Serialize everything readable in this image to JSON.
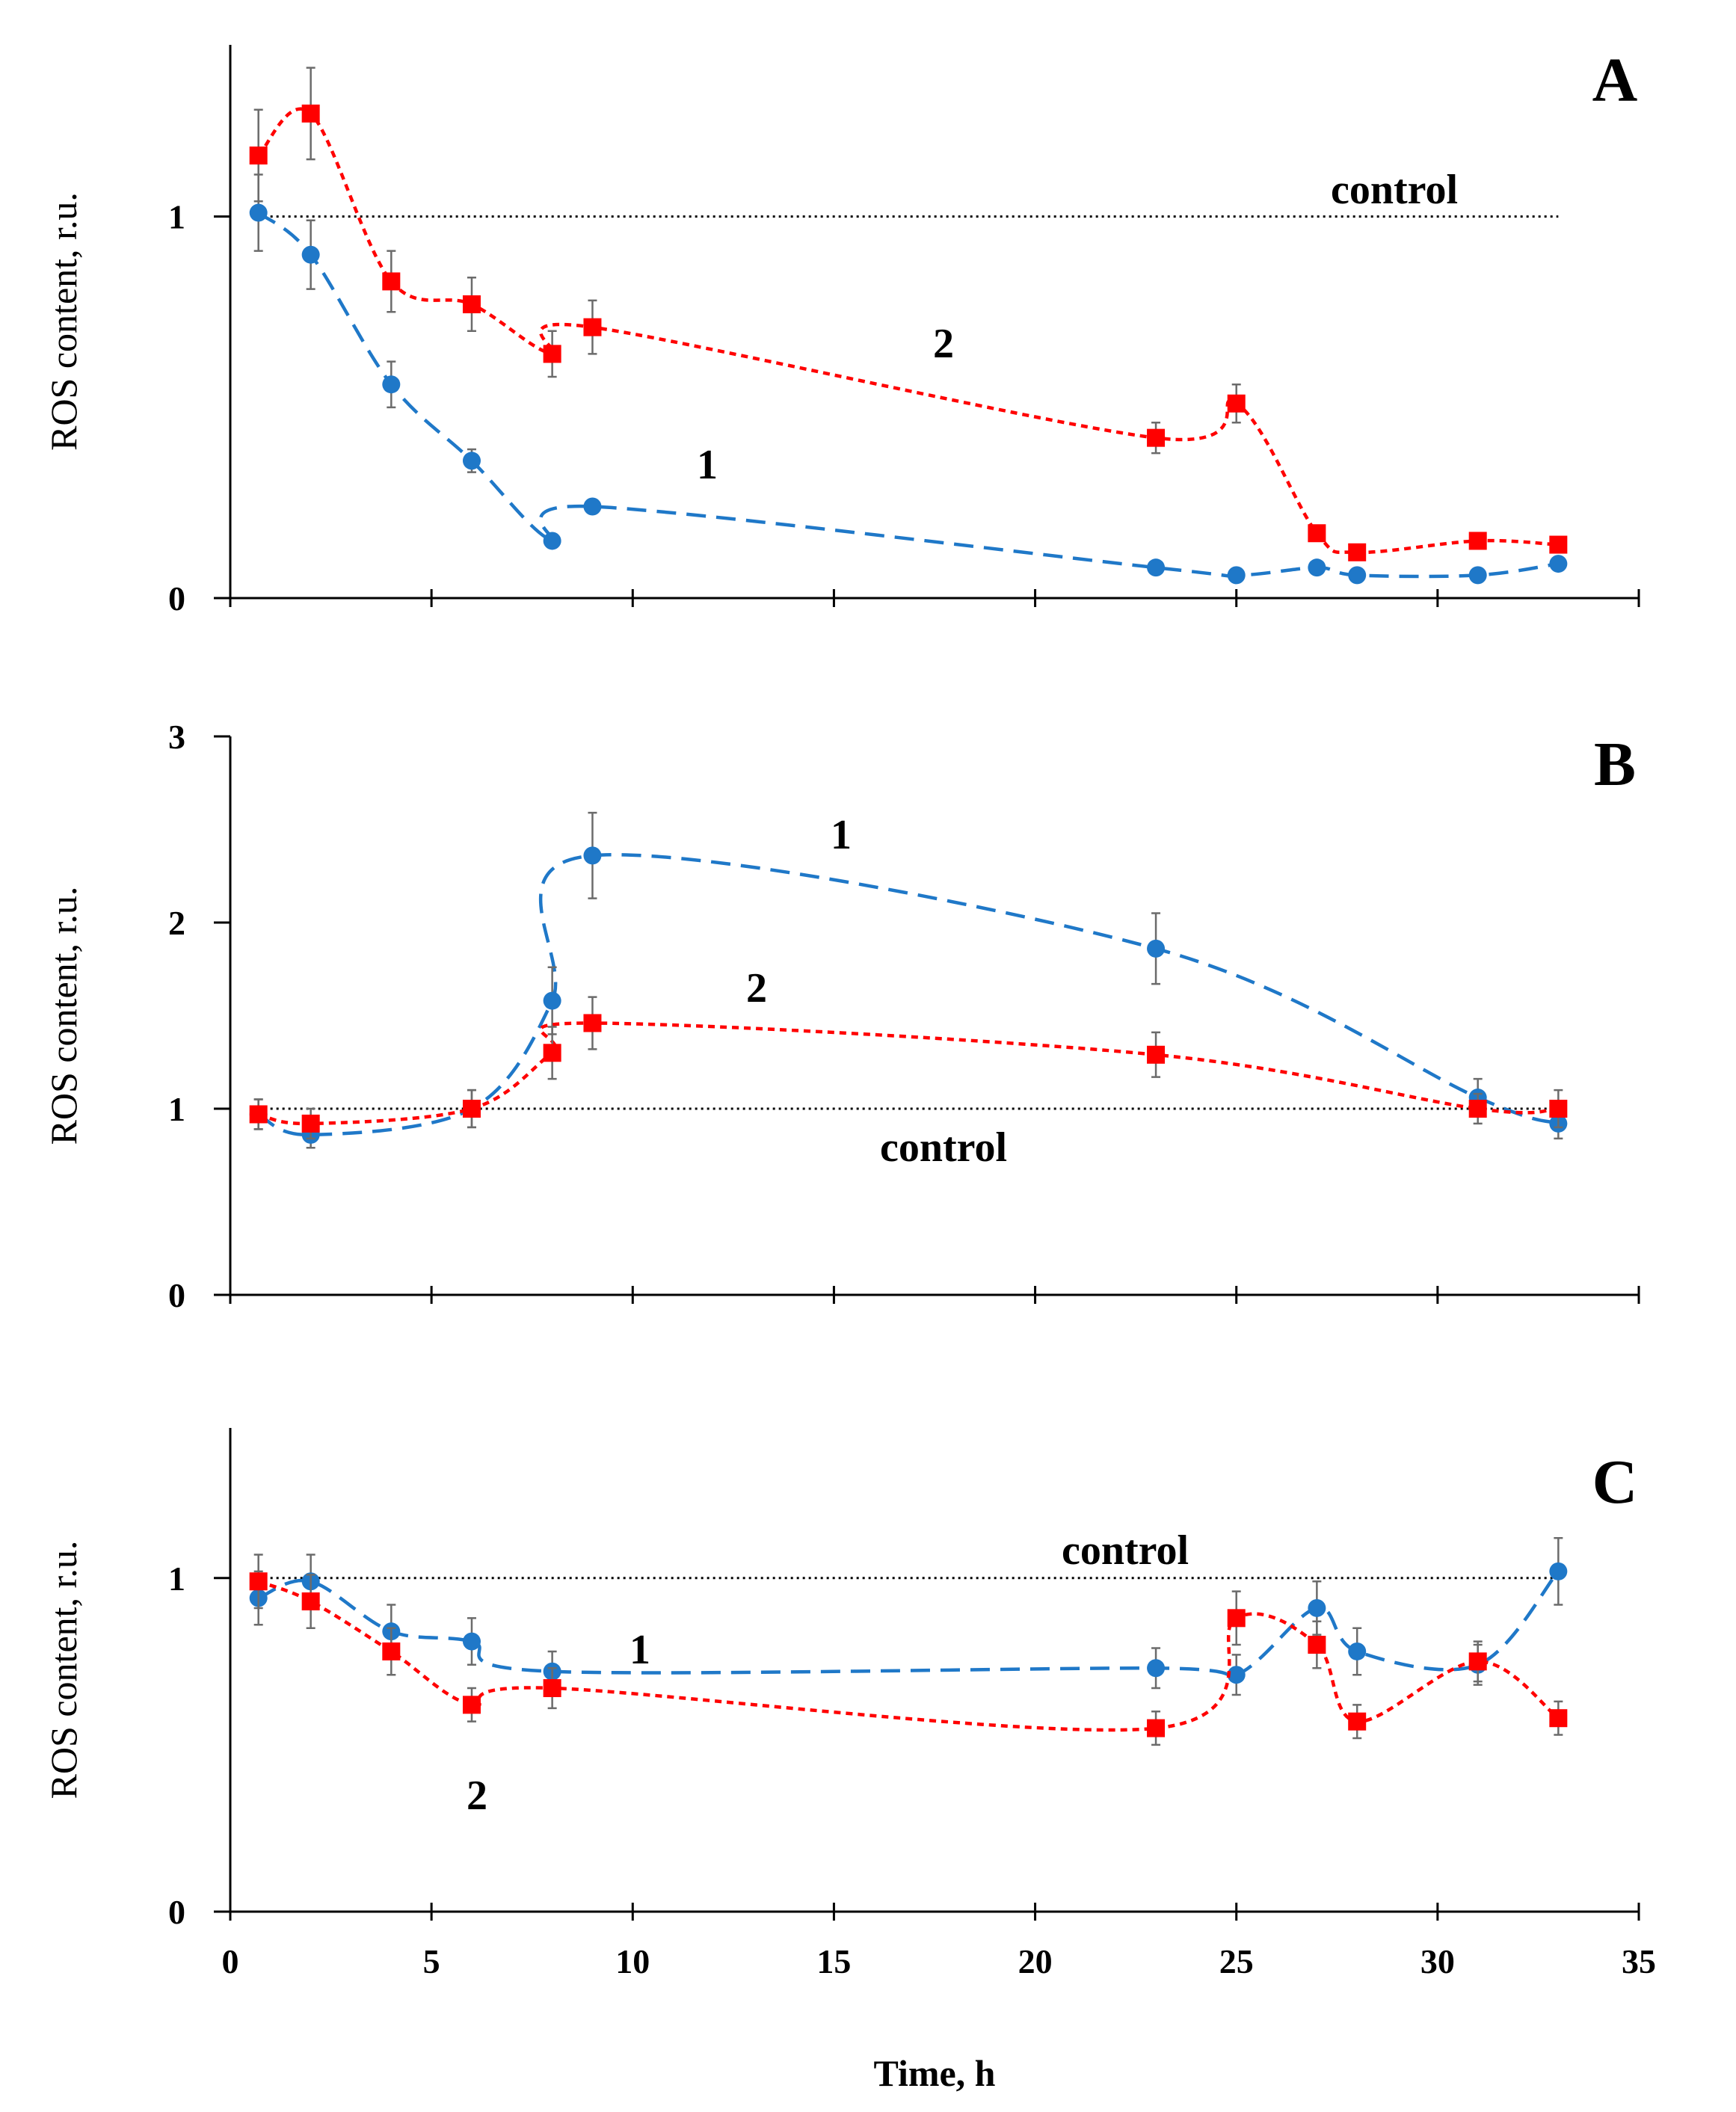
{
  "figure": {
    "xlabel": "Time, h",
    "x_tick_labels": [
      "0",
      "5",
      "10",
      "15",
      "20",
      "25",
      "30",
      "35"
    ],
    "colors": {
      "series1": "#1f78c8",
      "series2": "#ff0000",
      "control": "#000000"
    }
  },
  "chart_data": [
    {
      "type": "line",
      "panel": "A",
      "title": "A",
      "xlabel": "Time, h",
      "ylabel": "ROS content, r.u.",
      "xlim": [
        0,
        35
      ],
      "ylim": [
        0,
        1.45
      ],
      "y_ticks": [
        0,
        1
      ],
      "y_tick_labels": [
        "0",
        "1"
      ],
      "control": {
        "label": "control",
        "value": 1,
        "x_range": [
          0.7,
          33
        ]
      },
      "series": [
        {
          "name": "1",
          "label": "1",
          "marker": "circle",
          "color": "#1f78c8",
          "x": [
            0.7,
            2,
            4,
            6,
            8,
            9,
            23,
            25,
            27,
            28,
            31,
            33
          ],
          "y": [
            1.01,
            0.9,
            0.56,
            0.36,
            0.15,
            0.24,
            0.08,
            0.06,
            0.08,
            0.06,
            0.06,
            0.09
          ],
          "err": [
            0.1,
            0.09,
            0.06,
            0.03,
            0,
            0,
            0,
            0,
            0,
            0,
            0,
            0
          ]
        },
        {
          "name": "2",
          "label": "2",
          "marker": "square",
          "color": "#ff0000",
          "x": [
            0.7,
            2,
            4,
            6,
            8,
            9,
            23,
            25,
            27,
            28,
            31,
            33
          ],
          "y": [
            1.16,
            1.27,
            0.83,
            0.77,
            0.64,
            0.71,
            0.42,
            0.51,
            0.17,
            0.12,
            0.15,
            0.14
          ],
          "err": [
            0.12,
            0.12,
            0.08,
            0.07,
            0.06,
            0.07,
            0.04,
            0.05,
            0,
            0,
            0,
            0
          ]
        }
      ]
    },
    {
      "type": "line",
      "panel": "B",
      "title": "B",
      "xlabel": "Time, h",
      "ylabel": "ROS content, r.u.",
      "xlim": [
        0,
        35
      ],
      "ylim": [
        0,
        3
      ],
      "y_ticks": [
        0,
        1,
        2,
        3
      ],
      "y_tick_labels": [
        "0",
        "1",
        "2",
        "3"
      ],
      "control": {
        "label": "control",
        "value": 1,
        "x_range": [
          0.7,
          33
        ]
      },
      "series": [
        {
          "name": "1",
          "label": "1",
          "marker": "circle",
          "color": "#1f78c8",
          "x": [
            0.7,
            2,
            6,
            8,
            9,
            23,
            31,
            33
          ],
          "y": [
            0.97,
            0.86,
            1.0,
            1.58,
            2.36,
            1.86,
            1.06,
            0.92
          ],
          "err": [
            0.08,
            0.07,
            0.1,
            0.18,
            0.23,
            0.19,
            0.1,
            0.08
          ]
        },
        {
          "name": "2",
          "label": "2",
          "marker": "square",
          "color": "#ff0000",
          "x": [
            0.7,
            2,
            6,
            8,
            9,
            23,
            31,
            33
          ],
          "y": [
            0.97,
            0.92,
            1.0,
            1.3,
            1.46,
            1.29,
            1.0,
            1.0
          ],
          "err": [
            0.08,
            0.08,
            0.1,
            0.14,
            0.14,
            0.12,
            0.08,
            0.1
          ]
        }
      ]
    },
    {
      "type": "line",
      "panel": "C",
      "title": "C",
      "xlabel": "Time, h",
      "ylabel": "ROS content, r.u.",
      "xlim": [
        0,
        35
      ],
      "ylim": [
        0,
        1.45
      ],
      "y_ticks": [
        0,
        1
      ],
      "y_tick_labels": [
        "0",
        "1"
      ],
      "control": {
        "label": "control",
        "value": 1,
        "x_range": [
          0.7,
          33
        ]
      },
      "series": [
        {
          "name": "1",
          "label": "1",
          "marker": "circle",
          "color": "#1f78c8",
          "x": [
            0.7,
            2,
            4,
            6,
            8,
            23,
            25,
            27,
            28,
            31,
            33
          ],
          "y": [
            0.94,
            0.99,
            0.84,
            0.81,
            0.72,
            0.73,
            0.71,
            0.91,
            0.78,
            0.74,
            1.02
          ],
          "err": [
            0.08,
            0.08,
            0.08,
            0.07,
            0.06,
            0.06,
            0.06,
            0.08,
            0.07,
            0.06,
            0.1
          ]
        },
        {
          "name": "2",
          "label": "2",
          "marker": "square",
          "color": "#ff0000",
          "x": [
            0.7,
            2,
            4,
            6,
            8,
            23,
            25,
            27,
            28,
            31,
            33
          ],
          "y": [
            0.99,
            0.93,
            0.78,
            0.62,
            0.67,
            0.55,
            0.88,
            0.8,
            0.57,
            0.75,
            0.58
          ],
          "err": [
            0.08,
            0.08,
            0.07,
            0.05,
            0.06,
            0.05,
            0.08,
            0.07,
            0.05,
            0.06,
            0.05
          ]
        }
      ]
    }
  ]
}
